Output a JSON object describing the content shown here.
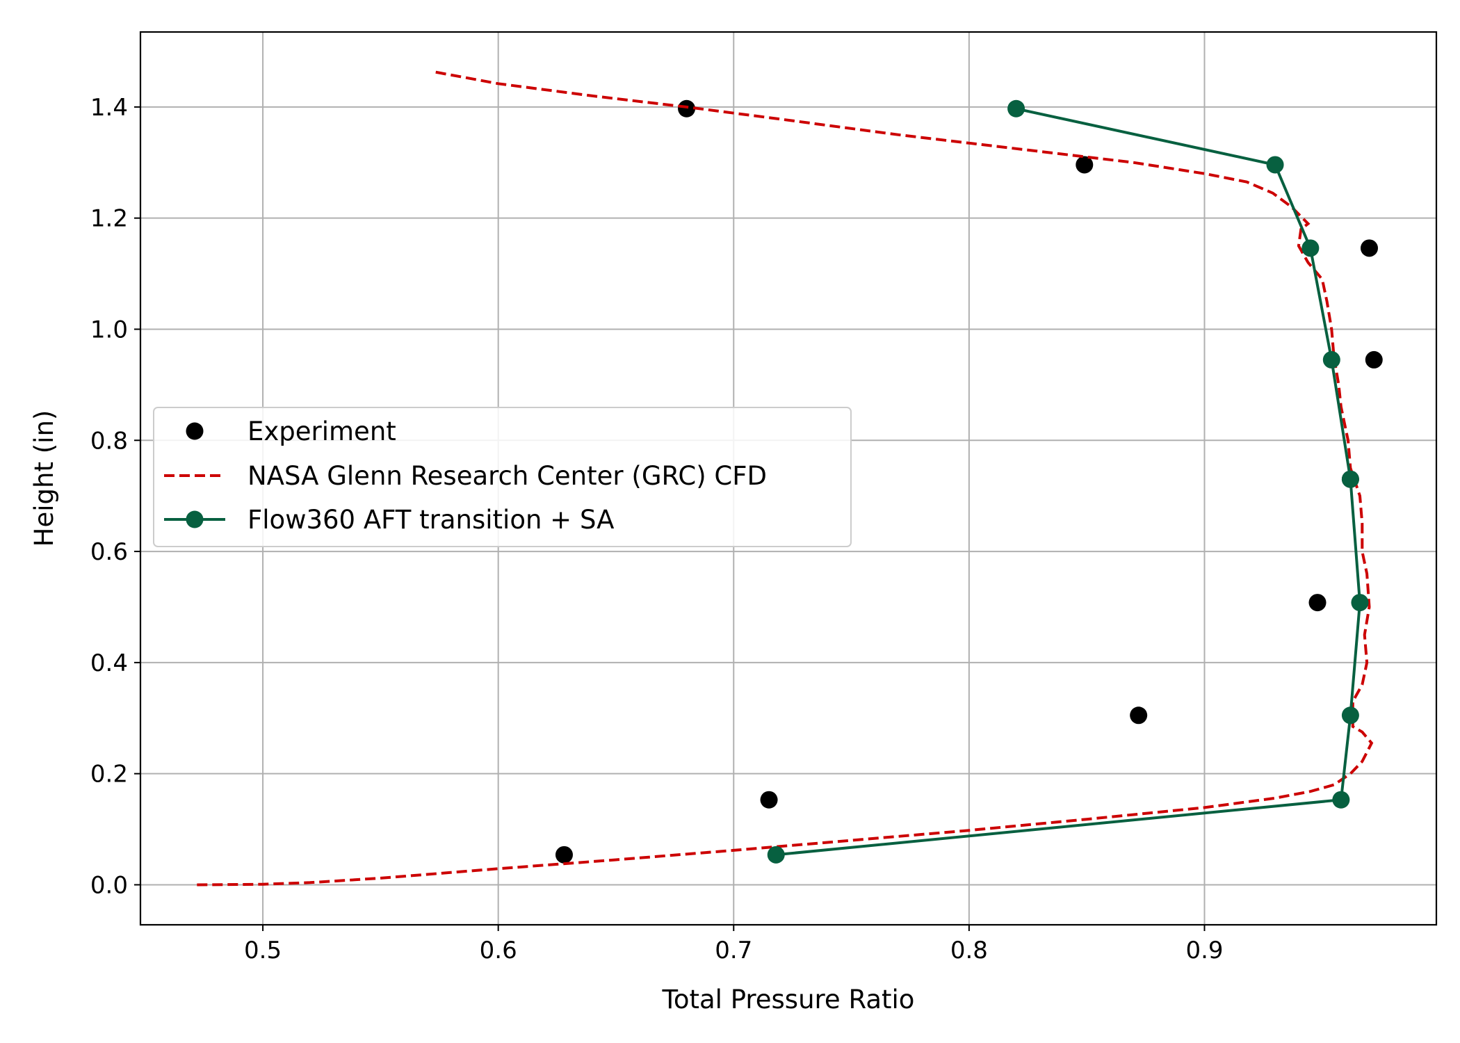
{
  "chart_data": {
    "type": "line",
    "title": "",
    "xlabel": "Total Pressure Ratio",
    "ylabel": "Height (in)",
    "xlim": [
      0.448,
      0.9985
    ],
    "ylim": [
      -0.072,
      1.535
    ],
    "xticks": [
      0.5,
      0.6,
      0.7,
      0.8,
      0.9
    ],
    "xtick_labels": [
      "0.5",
      "0.6",
      "0.7",
      "0.8",
      "0.9"
    ],
    "yticks": [
      0.0,
      0.2,
      0.4,
      0.6,
      0.8,
      1.0,
      1.2,
      1.4
    ],
    "ytick_labels": [
      "0.0",
      "0.2",
      "0.4",
      "0.6",
      "0.8",
      "1.0",
      "1.2",
      "1.4"
    ],
    "grid": true,
    "legend_position": "center-left",
    "series": [
      {
        "name": "Experiment",
        "style": "markers",
        "color": "#000000",
        "points": [
          [
            0.628,
            0.054
          ],
          [
            0.715,
            0.153
          ],
          [
            0.872,
            0.305
          ],
          [
            0.948,
            0.508
          ],
          [
            0.962,
            0.73
          ],
          [
            0.972,
            0.945
          ],
          [
            0.97,
            1.146
          ],
          [
            0.849,
            1.296
          ],
          [
            0.68,
            1.397
          ]
        ]
      },
      {
        "name": "NASA Glenn Research Center (GRC) CFD",
        "style": "dashed",
        "color": "#cc0000",
        "points": [
          [
            0.472,
            0.0
          ],
          [
            0.5,
            0.001
          ],
          [
            0.52,
            0.004
          ],
          [
            0.55,
            0.012
          ],
          [
            0.6,
            0.029
          ],
          [
            0.65,
            0.045
          ],
          [
            0.7,
            0.062
          ],
          [
            0.75,
            0.08
          ],
          [
            0.8,
            0.098
          ],
          [
            0.85,
            0.118
          ],
          [
            0.9,
            0.139
          ],
          [
            0.93,
            0.156
          ],
          [
            0.945,
            0.168
          ],
          [
            0.955,
            0.18
          ],
          [
            0.962,
            0.2
          ],
          [
            0.967,
            0.222
          ],
          [
            0.971,
            0.255
          ],
          [
            0.967,
            0.275
          ],
          [
            0.963,
            0.285
          ],
          [
            0.963,
            0.33
          ],
          [
            0.967,
            0.36
          ],
          [
            0.969,
            0.4
          ],
          [
            0.968,
            0.45
          ],
          [
            0.97,
            0.5
          ],
          [
            0.969,
            0.56
          ],
          [
            0.967,
            0.6
          ],
          [
            0.967,
            0.65
          ],
          [
            0.966,
            0.7
          ],
          [
            0.962,
            0.75
          ],
          [
            0.961,
            0.8
          ],
          [
            0.958,
            0.86
          ],
          [
            0.957,
            0.9
          ],
          [
            0.955,
            0.95
          ],
          [
            0.954,
            1.0
          ],
          [
            0.952,
            1.05
          ],
          [
            0.95,
            1.09
          ],
          [
            0.944,
            1.12
          ],
          [
            0.94,
            1.15
          ],
          [
            0.941,
            1.18
          ],
          [
            0.944,
            1.19
          ],
          [
            0.937,
            1.22
          ],
          [
            0.929,
            1.245
          ],
          [
            0.918,
            1.265
          ],
          [
            0.9,
            1.28
          ],
          [
            0.87,
            1.3
          ],
          [
            0.82,
            1.325
          ],
          [
            0.77,
            1.35
          ],
          [
            0.72,
            1.378
          ],
          [
            0.68,
            1.4
          ],
          [
            0.64,
            1.42
          ],
          [
            0.6,
            1.442
          ],
          [
            0.573,
            1.463
          ]
        ]
      },
      {
        "name": "Flow360 AFT transition + SA",
        "style": "solid-markers",
        "color": "#076040",
        "points": [
          [
            0.718,
            0.054
          ],
          [
            0.958,
            0.153
          ],
          [
            0.962,
            0.305
          ],
          [
            0.966,
            0.508
          ],
          [
            0.962,
            0.73
          ],
          [
            0.954,
            0.945
          ],
          [
            0.945,
            1.146
          ],
          [
            0.93,
            1.296
          ],
          [
            0.82,
            1.397
          ]
        ]
      }
    ]
  }
}
